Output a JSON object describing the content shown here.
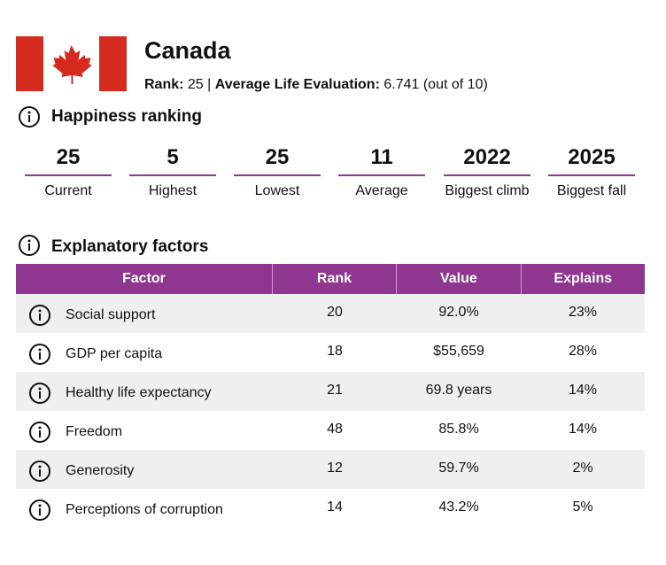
{
  "header": {
    "title": "Canada",
    "rank_label": "Rank:",
    "rank": 25,
    "separator": "|",
    "evaluation_label": "Average Life Evaluation:",
    "evaluation": 6.741,
    "evaluation_note": "(out of 10)"
  },
  "ranking": {
    "title": "Happiness ranking",
    "stats": [
      {
        "value": 25,
        "label": "Current"
      },
      {
        "value": 5,
        "label": "Highest"
      },
      {
        "value": 25,
        "label": "Lowest"
      },
      {
        "value": 11,
        "label": "Average"
      },
      {
        "value": 2022,
        "label": "Biggest climb"
      },
      {
        "value": 2025,
        "label": "Biggest fall"
      }
    ]
  },
  "factors": {
    "title": "Explanatory factors",
    "columns": [
      "Factor",
      "Rank",
      "Value",
      "Explains"
    ],
    "rows": [
      [
        "Social support",
        20,
        "92.0%",
        "23%"
      ],
      [
        "GDP per capita",
        18,
        "$55,659",
        "28%"
      ],
      [
        "Healthy life expectancy",
        21,
        "69.8 years",
        "14%"
      ],
      [
        "Freedom",
        48,
        "85.8%",
        "14%"
      ],
      [
        "Generosity",
        12,
        "59.7%",
        "2%"
      ],
      [
        "Perceptions of corruption",
        14,
        "43.2%",
        "5%"
      ]
    ]
  }
}
